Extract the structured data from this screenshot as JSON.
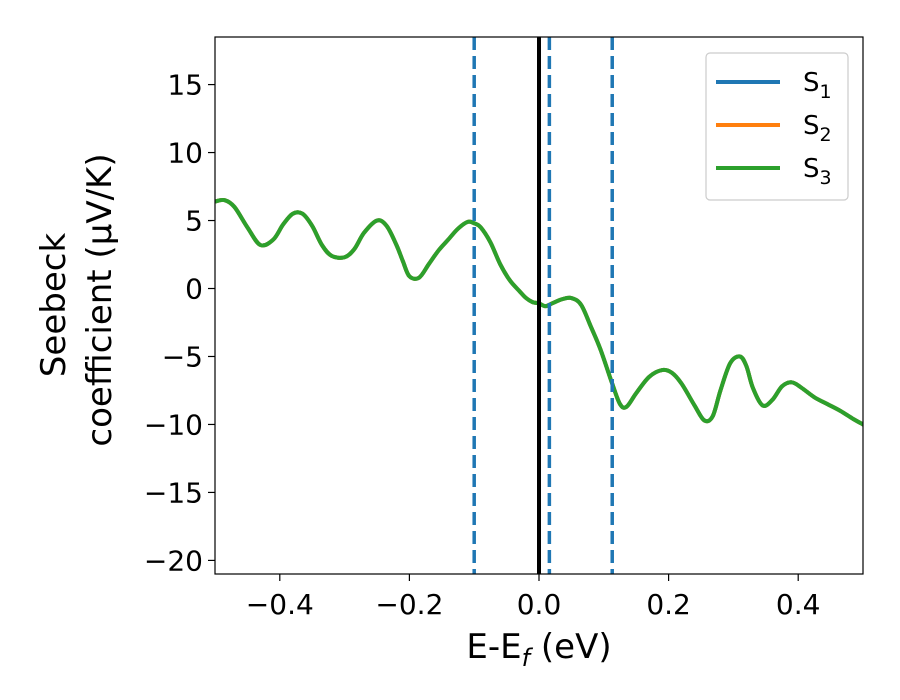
{
  "chart_data": {
    "type": "line",
    "title": "",
    "xlabel": {
      "main": "E-E",
      "sub": "f",
      "tail": " (eV)"
    },
    "ylabel": {
      "line1": "Seebeck",
      "line2": "coefficient  (μV/K)"
    },
    "xlim": [
      -0.5,
      0.5
    ],
    "ylim": [
      -21,
      18.5
    ],
    "xticks": [
      -0.4,
      -0.2,
      0.0,
      0.2,
      0.4
    ],
    "xtick_labels": [
      "−0.4",
      "−0.2",
      "0.0",
      "0.2",
      "0.4"
    ],
    "yticks": [
      15,
      10,
      5,
      0,
      -5,
      -10,
      -15,
      -20
    ],
    "ytick_labels": [
      "15",
      "10",
      "5",
      "0",
      "−5",
      "−10",
      "−15",
      "−20"
    ],
    "grid": false,
    "legend_position": "top-right",
    "vlines": [
      {
        "x": -0.1,
        "color": "#1f77b4",
        "style": "dashed"
      },
      {
        "x": 0.0,
        "color": "#000000",
        "style": "solid"
      },
      {
        "x": 0.016,
        "color": "#1f77b4",
        "style": "dashed"
      },
      {
        "x": 0.113,
        "color": "#1f77b4",
        "style": "dashed"
      }
    ],
    "x": [
      -0.5,
      -0.485,
      -0.47,
      -0.45,
      -0.43,
      -0.41,
      -0.395,
      -0.38,
      -0.365,
      -0.35,
      -0.335,
      -0.32,
      -0.3,
      -0.285,
      -0.27,
      -0.25,
      -0.235,
      -0.22,
      -0.21,
      -0.2,
      -0.185,
      -0.17,
      -0.155,
      -0.14,
      -0.125,
      -0.11,
      -0.1,
      -0.09,
      -0.075,
      -0.06,
      -0.045,
      -0.03,
      -0.02,
      -0.01,
      0.0,
      0.01,
      0.02,
      0.035,
      0.05,
      0.065,
      0.08,
      0.095,
      0.113,
      0.125,
      0.135,
      0.15,
      0.17,
      0.19,
      0.205,
      0.22,
      0.24,
      0.255,
      0.268,
      0.28,
      0.295,
      0.31,
      0.32,
      0.33,
      0.345,
      0.36,
      0.375,
      0.39,
      0.405,
      0.425,
      0.445,
      0.465,
      0.485,
      0.5
    ],
    "series": [
      {
        "name": "S",
        "sub": "1",
        "color": "#1f77b4",
        "values": [
          6.4,
          6.5,
          6.0,
          4.5,
          3.2,
          3.6,
          4.7,
          5.5,
          5.5,
          4.6,
          3.2,
          2.4,
          2.3,
          2.9,
          4.1,
          5.0,
          4.6,
          3.2,
          2.0,
          0.9,
          0.8,
          1.8,
          2.8,
          3.6,
          4.4,
          4.9,
          4.8,
          4.5,
          3.4,
          1.8,
          0.6,
          -0.2,
          -0.7,
          -1.0,
          -1.1,
          -1.3,
          -1.1,
          -0.8,
          -0.7,
          -1.2,
          -2.8,
          -4.5,
          -7.0,
          -8.5,
          -8.7,
          -7.7,
          -6.5,
          -6.0,
          -6.2,
          -7.0,
          -8.6,
          -9.7,
          -9.4,
          -7.5,
          -5.5,
          -5.0,
          -5.7,
          -7.3,
          -8.6,
          -8.2,
          -7.2,
          -6.9,
          -7.3,
          -8.0,
          -8.5,
          -9.0,
          -9.6,
          -10.0
        ]
      },
      {
        "name": "S",
        "sub": "2",
        "color": "#ff7f0e",
        "values": [
          6.4,
          6.5,
          6.0,
          4.5,
          3.2,
          3.6,
          4.7,
          5.5,
          5.5,
          4.6,
          3.2,
          2.4,
          2.3,
          2.9,
          4.1,
          5.0,
          4.6,
          3.2,
          2.0,
          0.9,
          0.8,
          1.8,
          2.8,
          3.6,
          4.4,
          4.9,
          4.8,
          4.5,
          3.4,
          1.8,
          0.6,
          -0.2,
          -0.7,
          -1.0,
          -1.1,
          -1.3,
          -1.1,
          -0.8,
          -0.7,
          -1.2,
          -2.8,
          -4.5,
          -7.0,
          -8.5,
          -8.7,
          -7.7,
          -6.5,
          -6.0,
          -6.2,
          -7.0,
          -8.6,
          -9.7,
          -9.4,
          -7.5,
          -5.5,
          -5.0,
          -5.7,
          -7.3,
          -8.6,
          -8.2,
          -7.2,
          -6.9,
          -7.3,
          -8.0,
          -8.5,
          -9.0,
          -9.6,
          -10.0
        ]
      },
      {
        "name": "S",
        "sub": "3",
        "color": "#2ca02c",
        "values": [
          6.4,
          6.5,
          6.0,
          4.5,
          3.2,
          3.6,
          4.7,
          5.5,
          5.5,
          4.6,
          3.2,
          2.4,
          2.3,
          2.9,
          4.1,
          5.0,
          4.6,
          3.2,
          2.0,
          0.9,
          0.8,
          1.8,
          2.8,
          3.6,
          4.4,
          4.9,
          4.8,
          4.5,
          3.4,
          1.8,
          0.6,
          -0.2,
          -0.7,
          -1.0,
          -1.1,
          -1.3,
          -1.1,
          -0.8,
          -0.7,
          -1.2,
          -2.8,
          -4.5,
          -7.0,
          -8.5,
          -8.7,
          -7.7,
          -6.5,
          -6.0,
          -6.2,
          -7.0,
          -8.6,
          -9.7,
          -9.4,
          -7.5,
          -5.5,
          -5.0,
          -5.7,
          -7.3,
          -8.6,
          -8.2,
          -7.2,
          -6.9,
          -7.3,
          -8.0,
          -8.5,
          -9.0,
          -9.6,
          -10.0
        ]
      }
    ]
  }
}
